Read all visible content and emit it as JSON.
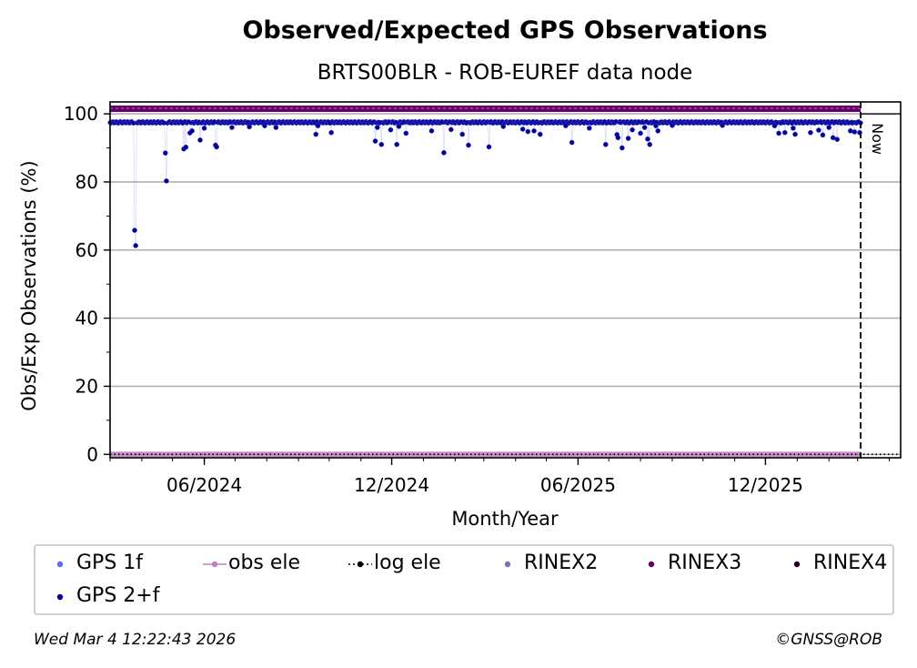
{
  "chart_data": {
    "type": "scatter",
    "title": "Observed/Expected GPS Observations",
    "subtitle": "BRTS00BLR - ROB-EUREF data node",
    "xlabel": "Month/Year",
    "ylabel": "Obs/Exp Observations (%)",
    "x_range": [
      "2024-03-01",
      "2026-04-12"
    ],
    "ylim": [
      -1,
      103.5
    ],
    "x_ticks": [
      {
        "date": "2024-06-01",
        "label": "06/2024"
      },
      {
        "date": "2024-12-01",
        "label": "12/2024"
      },
      {
        "date": "2025-06-01",
        "label": "06/2025"
      },
      {
        "date": "2025-12-01",
        "label": "12/2025"
      }
    ],
    "y_ticks": [
      0,
      20,
      40,
      60,
      80,
      100
    ],
    "grid": "horizontal",
    "now_marker": {
      "date": "2026-03-04",
      "label": "Now"
    },
    "series": [
      {
        "name": "GPS 2+f",
        "color": "#00009c",
        "baseline": 97.5,
        "range": [
          "2024-03-01",
          "2026-03-04"
        ],
        "values": [
          [
            "2024-03-25",
            65.8
          ],
          [
            "2024-03-26",
            61.3
          ],
          [
            "2024-04-24",
            88.5
          ],
          [
            "2024-04-25",
            80.3
          ],
          [
            "2024-05-12",
            89.7
          ],
          [
            "2024-05-14",
            90.2
          ],
          [
            "2024-05-18",
            94.4
          ],
          [
            "2024-05-20",
            95.0
          ],
          [
            "2024-05-28",
            92.3
          ],
          [
            "2024-06-01",
            95.8
          ],
          [
            "2024-06-12",
            90.8
          ],
          [
            "2024-06-13",
            90.3
          ],
          [
            "2024-06-28",
            96.0
          ],
          [
            "2024-07-15",
            96.2
          ],
          [
            "2024-07-30",
            96.5
          ],
          [
            "2024-08-10",
            96.0
          ],
          [
            "2024-09-18",
            94.0
          ],
          [
            "2024-09-20",
            96.5
          ],
          [
            "2024-10-03",
            94.5
          ],
          [
            "2024-11-15",
            92.0
          ],
          [
            "2024-11-17",
            96.0
          ],
          [
            "2024-11-21",
            91.0
          ],
          [
            "2024-11-30",
            95.3
          ],
          [
            "2024-12-06",
            91.0
          ],
          [
            "2024-12-08",
            96.3
          ],
          [
            "2024-12-15",
            94.3
          ],
          [
            "2025-01-09",
            95.0
          ],
          [
            "2025-01-21",
            88.6
          ],
          [
            "2025-01-28",
            95.4
          ],
          [
            "2025-02-08",
            94.0
          ],
          [
            "2025-02-14",
            90.8
          ],
          [
            "2025-03-06",
            90.3
          ],
          [
            "2025-03-20",
            96.3
          ],
          [
            "2025-04-08",
            95.5
          ],
          [
            "2025-04-13",
            94.8
          ],
          [
            "2025-04-19",
            95.0
          ],
          [
            "2025-04-25",
            94.0
          ],
          [
            "2025-05-20",
            96.5
          ],
          [
            "2025-05-26",
            91.6
          ],
          [
            "2025-06-12",
            95.8
          ],
          [
            "2025-06-28",
            91.0
          ],
          [
            "2025-07-09",
            93.9
          ],
          [
            "2025-07-10",
            93.0
          ],
          [
            "2025-07-14",
            90.0
          ],
          [
            "2025-07-20",
            92.8
          ],
          [
            "2025-07-24",
            95.3
          ],
          [
            "2025-08-01",
            94.3
          ],
          [
            "2025-08-05",
            96.0
          ],
          [
            "2025-08-08",
            92.6
          ],
          [
            "2025-08-10",
            91.0
          ],
          [
            "2025-08-16",
            96.5
          ],
          [
            "2025-08-18",
            95.0
          ],
          [
            "2025-09-01",
            96.6
          ],
          [
            "2025-10-20",
            96.6
          ],
          [
            "2025-12-10",
            96.5
          ],
          [
            "2025-12-14",
            94.3
          ],
          [
            "2025-12-20",
            94.5
          ],
          [
            "2025-12-28",
            95.8
          ],
          [
            "2025-12-30",
            94.0
          ],
          [
            "2026-01-14",
            94.5
          ],
          [
            "2026-01-22",
            95.2
          ],
          [
            "2026-01-26",
            93.8
          ],
          [
            "2026-02-01",
            96.0
          ],
          [
            "2026-02-05",
            93.0
          ],
          [
            "2026-02-09",
            92.5
          ],
          [
            "2026-02-22",
            95.0
          ],
          [
            "2026-02-26",
            94.7
          ],
          [
            "2026-03-03",
            94.5
          ]
        ]
      },
      {
        "name": "GPS 1f",
        "color": "#6666ff",
        "values": []
      },
      {
        "name": "obs ele",
        "color": "#c080c0",
        "constant": 0,
        "range": [
          "2024-03-01",
          "2026-03-04"
        ]
      },
      {
        "name": "log ele",
        "color": "#000000",
        "style": "dotted",
        "constant": 0,
        "range": [
          "2024-03-01",
          "2026-04-12"
        ]
      },
      {
        "name": "RINEX2",
        "color": "#7a70bb",
        "values": []
      },
      {
        "name": "RINEX3",
        "color": "#660066",
        "constant": 101.5,
        "range": [
          "2024-03-01",
          "2026-03-04"
        ]
      },
      {
        "name": "RINEX4",
        "color": "#220022",
        "values": []
      }
    ]
  },
  "legend": {
    "items": [
      {
        "label": "GPS 1f",
        "color": "#6666ff",
        "marker": "dot"
      },
      {
        "label": "obs ele",
        "color": "#c080c0",
        "marker": "line-dot"
      },
      {
        "label": "log ele",
        "color": "#000000",
        "marker": "dotted-line-dot"
      },
      {
        "label": "RINEX2",
        "color": "#7a70bb",
        "marker": "dot"
      },
      {
        "label": "RINEX3",
        "color": "#660066",
        "marker": "dot"
      },
      {
        "label": "RINEX4",
        "color": "#220022",
        "marker": "dot"
      },
      {
        "label": "GPS 2+f",
        "color": "#00009c",
        "marker": "dot"
      }
    ]
  },
  "footer": {
    "timestamp": "Wed Mar  4 12:22:43 2026",
    "credit": "©GNSS@ROB"
  }
}
